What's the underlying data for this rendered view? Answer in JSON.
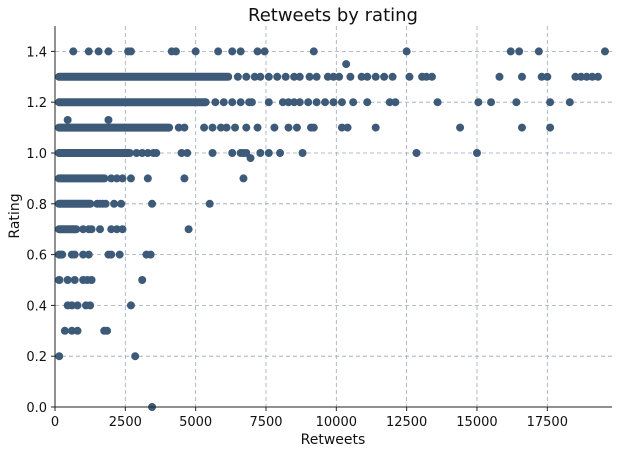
{
  "chart_data": {
    "type": "scatter",
    "title": "Retweets by rating",
    "xlabel": "Retweets",
    "ylabel": "Rating",
    "xlim": [
      0,
      19800
    ],
    "ylim": [
      0,
      1.5
    ],
    "x_ticks": [
      0,
      2500,
      5000,
      7500,
      10000,
      12500,
      15000,
      17500
    ],
    "y_ticks": [
      0.0,
      0.2,
      0.4,
      0.6,
      0.8,
      1.0,
      1.2,
      1.4
    ],
    "x_tick_labels": [
      "0",
      "2500",
      "5000",
      "7500",
      "10000",
      "12500",
      "15000",
      "17500"
    ],
    "y_tick_labels": [
      "0.0",
      "0.2",
      "0.4",
      "0.6",
      "0.8",
      "1.0",
      "1.2",
      "1.4"
    ],
    "grid": true,
    "marker_color": "#3d5a78",
    "grid_color": "#9aa8bf",
    "dense_bands": [
      {
        "y": 1.3,
        "x_from": 0,
        "x_to": 6300
      },
      {
        "y": 1.2,
        "x_from": 0,
        "x_to": 5500
      },
      {
        "y": 1.1,
        "x_from": 0,
        "x_to": 4200
      },
      {
        "y": 1.0,
        "x_from": 0,
        "x_to": 2800
      },
      {
        "y": 0.9,
        "x_from": 0,
        "x_to": 1900
      },
      {
        "y": 0.8,
        "x_from": 0,
        "x_to": 1400
      },
      {
        "y": 0.7,
        "x_from": 0,
        "x_to": 900
      },
      {
        "y": 0.6,
        "x_from": 0,
        "x_to": 400
      },
      {
        "y": 0.5,
        "x_from": 0,
        "x_to": 300
      }
    ],
    "points": [
      [
        650,
        1.4
      ],
      [
        1200,
        1.4
      ],
      [
        1550,
        1.4
      ],
      [
        1900,
        1.4
      ],
      [
        2600,
        1.4
      ],
      [
        2700,
        1.4
      ],
      [
        4150,
        1.4
      ],
      [
        4300,
        1.4
      ],
      [
        5000,
        1.4
      ],
      [
        5800,
        1.4
      ],
      [
        6300,
        1.4
      ],
      [
        6600,
        1.4
      ],
      [
        7200,
        1.4
      ],
      [
        7450,
        1.4
      ],
      [
        9200,
        1.4
      ],
      [
        12500,
        1.4
      ],
      [
        16200,
        1.4
      ],
      [
        16500,
        1.4
      ],
      [
        17200,
        1.4
      ],
      [
        19550,
        1.4
      ],
      [
        10350,
        1.35
      ],
      [
        6500,
        1.3
      ],
      [
        6800,
        1.3
      ],
      [
        7100,
        1.3
      ],
      [
        7300,
        1.3
      ],
      [
        7600,
        1.3
      ],
      [
        7900,
        1.3
      ],
      [
        8200,
        1.3
      ],
      [
        8500,
        1.3
      ],
      [
        8700,
        1.3
      ],
      [
        9050,
        1.3
      ],
      [
        9300,
        1.3
      ],
      [
        9700,
        1.3
      ],
      [
        9900,
        1.3
      ],
      [
        10100,
        1.3
      ],
      [
        10500,
        1.3
      ],
      [
        10900,
        1.3
      ],
      [
        11100,
        1.3
      ],
      [
        11400,
        1.3
      ],
      [
        11700,
        1.3
      ],
      [
        12000,
        1.3
      ],
      [
        12600,
        1.3
      ],
      [
        13050,
        1.3
      ],
      [
        13200,
        1.3
      ],
      [
        13400,
        1.3
      ],
      [
        15800,
        1.3
      ],
      [
        16600,
        1.3
      ],
      [
        17300,
        1.3
      ],
      [
        17500,
        1.3
      ],
      [
        18500,
        1.3
      ],
      [
        18700,
        1.3
      ],
      [
        18900,
        1.3
      ],
      [
        19100,
        1.3
      ],
      [
        19300,
        1.3
      ],
      [
        5700,
        1.2
      ],
      [
        6000,
        1.2
      ],
      [
        6300,
        1.2
      ],
      [
        6600,
        1.2
      ],
      [
        6900,
        1.2
      ],
      [
        7000,
        1.2
      ],
      [
        7600,
        1.2
      ],
      [
        8100,
        1.2
      ],
      [
        8300,
        1.2
      ],
      [
        8500,
        1.2
      ],
      [
        8700,
        1.2
      ],
      [
        9000,
        1.2
      ],
      [
        9300,
        1.2
      ],
      [
        9600,
        1.2
      ],
      [
        9900,
        1.2
      ],
      [
        10200,
        1.2
      ],
      [
        10600,
        1.2
      ],
      [
        11100,
        1.2
      ],
      [
        11900,
        1.2
      ],
      [
        12100,
        1.2
      ],
      [
        13600,
        1.2
      ],
      [
        15050,
        1.2
      ],
      [
        15500,
        1.2
      ],
      [
        16400,
        1.2
      ],
      [
        17600,
        1.2
      ],
      [
        18300,
        1.2
      ],
      [
        450,
        1.13
      ],
      [
        1900,
        1.13
      ],
      [
        4400,
        1.1
      ],
      [
        4600,
        1.1
      ],
      [
        5300,
        1.1
      ],
      [
        5600,
        1.1
      ],
      [
        5900,
        1.1
      ],
      [
        6100,
        1.1
      ],
      [
        6400,
        1.1
      ],
      [
        6800,
        1.1
      ],
      [
        7200,
        1.1
      ],
      [
        7800,
        1.1
      ],
      [
        8300,
        1.1
      ],
      [
        8600,
        1.1
      ],
      [
        9100,
        1.1
      ],
      [
        9200,
        1.1
      ],
      [
        10200,
        1.1
      ],
      [
        10400,
        1.1
      ],
      [
        11400,
        1.1
      ],
      [
        14400,
        1.1
      ],
      [
        16600,
        1.1
      ],
      [
        17600,
        1.1
      ],
      [
        2900,
        1.0
      ],
      [
        3100,
        1.0
      ],
      [
        3300,
        1.0
      ],
      [
        3500,
        1.0
      ],
      [
        3600,
        1.0
      ],
      [
        4500,
        1.0
      ],
      [
        4700,
        1.0
      ],
      [
        5600,
        1.0
      ],
      [
        6300,
        1.0
      ],
      [
        6600,
        1.0
      ],
      [
        6700,
        1.0
      ],
      [
        6800,
        1.0
      ],
      [
        7300,
        1.0
      ],
      [
        7600,
        1.0
      ],
      [
        8000,
        1.0
      ],
      [
        8800,
        1.0
      ],
      [
        12850,
        1.0
      ],
      [
        15000,
        1.0
      ],
      [
        6950,
        0.98
      ],
      [
        2000,
        0.9
      ],
      [
        2200,
        0.9
      ],
      [
        2400,
        0.9
      ],
      [
        2700,
        0.9
      ],
      [
        3300,
        0.9
      ],
      [
        4600,
        0.9
      ],
      [
        6700,
        0.9
      ],
      [
        1500,
        0.8
      ],
      [
        1600,
        0.8
      ],
      [
        1700,
        0.8
      ],
      [
        1800,
        0.8
      ],
      [
        2100,
        0.8
      ],
      [
        2350,
        0.8
      ],
      [
        3450,
        0.8
      ],
      [
        5500,
        0.8
      ],
      [
        1000,
        0.7
      ],
      [
        1200,
        0.7
      ],
      [
        1300,
        0.7
      ],
      [
        1600,
        0.7
      ],
      [
        2000,
        0.7
      ],
      [
        2200,
        0.7
      ],
      [
        2400,
        0.7
      ],
      [
        4750,
        0.7
      ],
      [
        600,
        0.6
      ],
      [
        700,
        0.6
      ],
      [
        1000,
        0.6
      ],
      [
        1200,
        0.6
      ],
      [
        1900,
        0.6
      ],
      [
        2000,
        0.6
      ],
      [
        2300,
        0.6
      ],
      [
        3250,
        0.6
      ],
      [
        3400,
        0.6
      ],
      [
        450,
        0.5
      ],
      [
        700,
        0.5
      ],
      [
        1000,
        0.5
      ],
      [
        1150,
        0.5
      ],
      [
        1300,
        0.5
      ],
      [
        3100,
        0.5
      ],
      [
        450,
        0.4
      ],
      [
        600,
        0.4
      ],
      [
        800,
        0.4
      ],
      [
        1100,
        0.4
      ],
      [
        1250,
        0.4
      ],
      [
        2700,
        0.4
      ],
      [
        350,
        0.3
      ],
      [
        600,
        0.3
      ],
      [
        800,
        0.3
      ],
      [
        1750,
        0.3
      ],
      [
        1850,
        0.3
      ],
      [
        150,
        0.2
      ],
      [
        2850,
        0.2
      ],
      [
        3450,
        0.0
      ]
    ]
  }
}
